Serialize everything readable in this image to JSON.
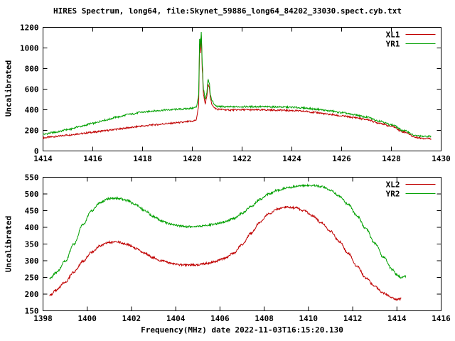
{
  "title": "HIRES Spectrum, long64, file:Skynet_59886_long64_84202_33030.spect.cyb.txt",
  "xlabel": "Frequency(MHz) date 2022-11-03T16:15:20.130",
  "colors": {
    "red_series": "#c00000",
    "green_series": "#00a000",
    "axis": "#000000",
    "background": "#ffffff"
  },
  "chart_data": [
    {
      "type": "line",
      "title": "",
      "ylabel": "Uncalibrated",
      "xlim": [
        1414,
        1430
      ],
      "ylim": [
        0,
        1200
      ],
      "xticks": [
        1414,
        1416,
        1418,
        1420,
        1422,
        1424,
        1426,
        1428,
        1430
      ],
      "yticks": [
        0,
        200,
        400,
        600,
        800,
        1000,
        1200
      ],
      "grid": false,
      "legend_position": "top-right",
      "series": [
        {
          "name": "XL1",
          "color": "#c00000",
          "x": [
            1414.0,
            1414.5,
            1415.0,
            1415.5,
            1416.0,
            1416.5,
            1417.0,
            1417.5,
            1418.0,
            1418.5,
            1419.0,
            1419.5,
            1420.0,
            1420.15,
            1420.25,
            1420.3,
            1420.33,
            1420.36,
            1420.4,
            1420.45,
            1420.52,
            1420.58,
            1420.63,
            1420.68,
            1420.73,
            1420.8,
            1420.9,
            1421.0,
            1421.5,
            1422.0,
            1422.5,
            1423.0,
            1423.5,
            1424.0,
            1424.5,
            1425.0,
            1425.5,
            1426.0,
            1426.5,
            1427.0,
            1427.5,
            1428.0,
            1428.5,
            1429.0,
            1429.3,
            1429.6
          ],
          "y": [
            128,
            140,
            155,
            168,
            182,
            197,
            212,
            227,
            242,
            255,
            266,
            276,
            288,
            300,
            420,
            1080,
            950,
            1130,
            780,
            540,
            460,
            520,
            650,
            620,
            500,
            450,
            415,
            405,
            398,
            400,
            399,
            398,
            396,
            392,
            385,
            372,
            355,
            340,
            325,
            305,
            272,
            240,
            185,
            132,
            122,
            120
          ]
        },
        {
          "name": "YR1",
          "color": "#00a000",
          "x": [
            1414.0,
            1414.5,
            1415.0,
            1415.5,
            1416.0,
            1416.5,
            1417.0,
            1417.5,
            1418.0,
            1418.5,
            1419.0,
            1419.5,
            1420.0,
            1420.15,
            1420.25,
            1420.3,
            1420.33,
            1420.36,
            1420.4,
            1420.45,
            1420.52,
            1420.58,
            1420.63,
            1420.68,
            1420.73,
            1420.8,
            1420.9,
            1421.0,
            1421.5,
            1422.0,
            1422.5,
            1423.0,
            1423.5,
            1424.0,
            1424.5,
            1425.0,
            1425.5,
            1426.0,
            1426.5,
            1427.0,
            1427.5,
            1428.0,
            1428.5,
            1429.0,
            1429.3,
            1429.6
          ],
          "y": [
            162,
            182,
            208,
            238,
            268,
            300,
            330,
            357,
            377,
            390,
            399,
            406,
            414,
            425,
            520,
            1120,
            1000,
            1155,
            830,
            590,
            500,
            560,
            690,
            660,
            540,
            485,
            445,
            432,
            428,
            430,
            430,
            429,
            427,
            424,
            417,
            405,
            390,
            372,
            352,
            328,
            293,
            255,
            198,
            148,
            140,
            142
          ]
        }
      ]
    },
    {
      "type": "line",
      "title": "",
      "ylabel": "Uncalibrated",
      "xlim": [
        1398,
        1416
      ],
      "ylim": [
        150,
        550
      ],
      "xticks": [
        1398,
        1400,
        1402,
        1404,
        1406,
        1408,
        1410,
        1412,
        1414,
        1416
      ],
      "yticks": [
        150,
        200,
        250,
        300,
        350,
        400,
        450,
        500,
        550
      ],
      "grid": false,
      "legend_position": "top-right",
      "series": [
        {
          "name": "XL2",
          "color": "#c00000",
          "x": [
            1398.3,
            1398.6,
            1399.0,
            1399.4,
            1399.8,
            1400.2,
            1400.6,
            1401.0,
            1401.4,
            1401.8,
            1402.2,
            1402.6,
            1403.0,
            1403.4,
            1403.8,
            1404.2,
            1404.6,
            1405.0,
            1405.4,
            1405.8,
            1406.2,
            1406.6,
            1407.0,
            1407.4,
            1407.8,
            1408.2,
            1408.6,
            1409.0,
            1409.4,
            1409.8,
            1410.2,
            1410.6,
            1411.0,
            1411.4,
            1411.8,
            1412.2,
            1412.6,
            1413.0,
            1413.4,
            1413.8,
            1414.0,
            1414.2
          ],
          "y": [
            196,
            212,
            236,
            266,
            298,
            325,
            345,
            355,
            356,
            349,
            337,
            322,
            309,
            299,
            292,
            288,
            287,
            288,
            292,
            298,
            307,
            322,
            348,
            382,
            415,
            440,
            455,
            461,
            459,
            450,
            434,
            413,
            388,
            357,
            322,
            283,
            248,
            222,
            203,
            188,
            184,
            187
          ]
        },
        {
          "name": "YR2",
          "color": "#00a000",
          "x": [
            1398.3,
            1398.6,
            1399.0,
            1399.4,
            1399.8,
            1400.2,
            1400.6,
            1401.0,
            1401.4,
            1401.8,
            1402.2,
            1402.6,
            1403.0,
            1403.4,
            1403.8,
            1404.2,
            1404.6,
            1405.0,
            1405.4,
            1405.8,
            1406.2,
            1406.6,
            1407.0,
            1407.4,
            1407.8,
            1408.2,
            1408.6,
            1409.0,
            1409.4,
            1409.8,
            1410.2,
            1410.6,
            1411.0,
            1411.4,
            1411.8,
            1412.2,
            1412.6,
            1413.0,
            1413.4,
            1413.8,
            1414.0,
            1414.2,
            1414.4
          ],
          "y": [
            246,
            265,
            298,
            350,
            408,
            450,
            475,
            486,
            487,
            480,
            468,
            450,
            432,
            418,
            409,
            404,
            402,
            403,
            406,
            410,
            416,
            426,
            442,
            462,
            483,
            500,
            511,
            518,
            522,
            525,
            526,
            522,
            511,
            493,
            468,
            434,
            396,
            352,
            310,
            273,
            258,
            250,
            254
          ]
        }
      ]
    }
  ]
}
